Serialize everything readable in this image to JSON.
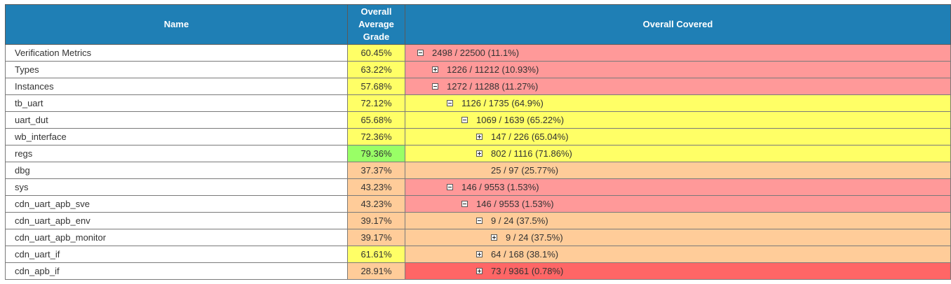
{
  "header": {
    "name": "Name",
    "grade_lines": [
      "Overall",
      "Average",
      "Grade"
    ],
    "covered": "Overall Covered"
  },
  "colors": {
    "header_bg": "#1f7fb5",
    "yellow": "#ffff66",
    "green": "#99ff66",
    "orange": "#ffcc99",
    "pink": "#ff9999",
    "red": "#ff6666"
  },
  "rows": [
    {
      "name": "Verification Metrics",
      "grade": "60.45%",
      "grade_color": "#ffff66",
      "covered": "2498 / 22500 (11.1%)",
      "cov_color": "#ff9999",
      "toggle": "minus",
      "depth": 0
    },
    {
      "name": "Types",
      "grade": "63.22%",
      "grade_color": "#ffff66",
      "covered": "1226 / 11212 (10.93%)",
      "cov_color": "#ff9999",
      "toggle": "plus",
      "depth": 1
    },
    {
      "name": "Instances",
      "grade": "57.68%",
      "grade_color": "#ffff66",
      "covered": "1272 / 11288 (11.27%)",
      "cov_color": "#ff9999",
      "toggle": "minus",
      "depth": 1
    },
    {
      "name": "tb_uart",
      "grade": "72.12%",
      "grade_color": "#ffff66",
      "covered": "1126 / 1735 (64.9%)",
      "cov_color": "#ffff66",
      "toggle": "minus",
      "depth": 2
    },
    {
      "name": "uart_dut",
      "grade": "65.68%",
      "grade_color": "#ffff66",
      "covered": "1069 / 1639 (65.22%)",
      "cov_color": "#ffff66",
      "toggle": "minus",
      "depth": 3
    },
    {
      "name": "wb_interface",
      "grade": "72.36%",
      "grade_color": "#ffff66",
      "covered": "147 / 226 (65.04%)",
      "cov_color": "#ffff66",
      "toggle": "plus",
      "depth": 4
    },
    {
      "name": "regs",
      "grade": "79.36%",
      "grade_color": "#99ff66",
      "covered": "802 / 1116 (71.86%)",
      "cov_color": "#ffff66",
      "toggle": "plus",
      "depth": 4
    },
    {
      "name": "dbg",
      "grade": "37.37%",
      "grade_color": "#ffcc99",
      "covered": "25 / 97 (25.77%)",
      "cov_color": "#ffcc99",
      "toggle": "none",
      "depth": 4
    },
    {
      "name": "sys",
      "grade": "43.23%",
      "grade_color": "#ffcc99",
      "covered": "146 / 9553 (1.53%)",
      "cov_color": "#ff9999",
      "toggle": "minus",
      "depth": 2
    },
    {
      "name": "cdn_uart_apb_sve",
      "grade": "43.23%",
      "grade_color": "#ffcc99",
      "covered": "146 / 9553 (1.53%)",
      "cov_color": "#ff9999",
      "toggle": "minus",
      "depth": 3
    },
    {
      "name": "cdn_uart_apb_env",
      "grade": "39.17%",
      "grade_color": "#ffcc99",
      "covered": "9 / 24 (37.5%)",
      "cov_color": "#ffcc99",
      "toggle": "minus",
      "depth": 4
    },
    {
      "name": "cdn_uart_apb_monitor",
      "grade": "39.17%",
      "grade_color": "#ffcc99",
      "covered": "9 / 24 (37.5%)",
      "cov_color": "#ffcc99",
      "toggle": "plus",
      "depth": 5
    },
    {
      "name": "cdn_uart_if",
      "grade": "61.61%",
      "grade_color": "#ffff66",
      "covered": "64 / 168 (38.1%)",
      "cov_color": "#ffcc99",
      "toggle": "plus",
      "depth": 4
    },
    {
      "name": "cdn_apb_if",
      "grade": "28.91%",
      "grade_color": "#ffcc99",
      "covered": "73 / 9361 (0.78%)",
      "cov_color": "#ff6666",
      "toggle": "plus",
      "depth": 4
    }
  ]
}
